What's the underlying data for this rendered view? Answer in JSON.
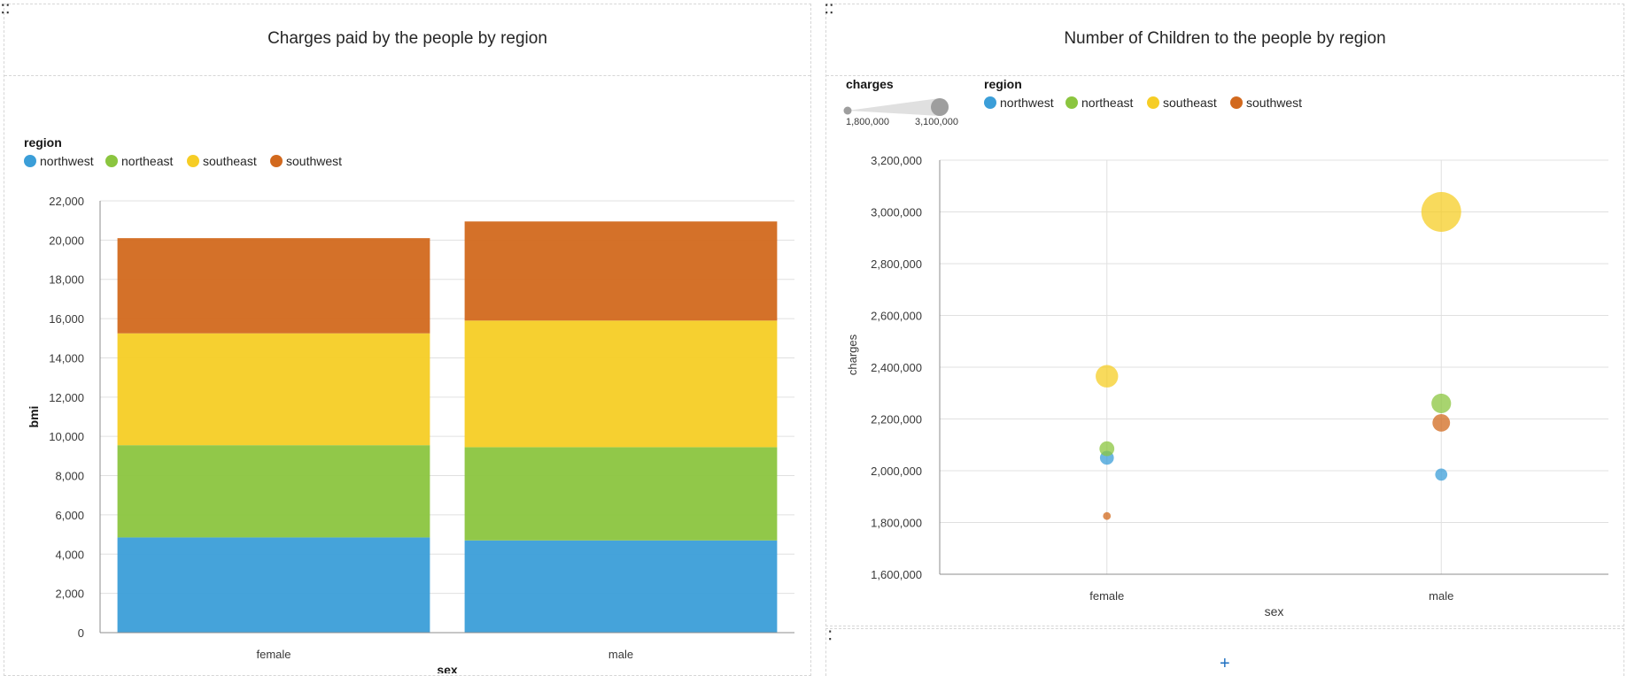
{
  "left_panel": {
    "title": "Charges paid by the people by region",
    "legend_title": "region"
  },
  "right_panel": {
    "title": "Number of Children to the people by region",
    "size_legend": {
      "title": "charges",
      "min_label": "1,800,000",
      "max_label": "3,100,000"
    },
    "legend_title": "region"
  },
  "regions": [
    {
      "name": "northwest",
      "color": "#3b9ed8"
    },
    {
      "name": "northeast",
      "color": "#8bc53f"
    },
    {
      "name": "southeast",
      "color": "#f6cd25"
    },
    {
      "name": "southwest",
      "color": "#d2691e"
    }
  ],
  "add_widget": {
    "label": "+"
  },
  "chart_data": [
    {
      "type": "bar",
      "stacked": true,
      "title": "Charges paid by the people by region",
      "xlabel": "sex",
      "ylabel": "bmi",
      "categories": [
        "female",
        "male"
      ],
      "ylim": [
        0,
        22000
      ],
      "yticks": [
        0,
        2000,
        4000,
        6000,
        8000,
        10000,
        12000,
        14000,
        16000,
        18000,
        20000,
        22000
      ],
      "ytick_labels": [
        "0",
        "2,000",
        "4,000",
        "6,000",
        "8,000",
        "10,000",
        "12,000",
        "14,000",
        "16,000",
        "18,000",
        "20,000",
        "22,000"
      ],
      "series": [
        {
          "name": "northwest",
          "values": [
            4850,
            4700
          ]
        },
        {
          "name": "northeast",
          "values": [
            4700,
            4750
          ]
        },
        {
          "name": "southeast",
          "values": [
            5700,
            6450
          ]
        },
        {
          "name": "southwest",
          "values": [
            4850,
            5050
          ]
        }
      ],
      "grid": true,
      "legend": "top-left"
    },
    {
      "type": "scatter",
      "subtype": "bubble",
      "title": "Number of Children to the people by region",
      "xlabel": "sex",
      "ylabel": "charges",
      "categories": [
        "female",
        "male"
      ],
      "ylim": [
        1600000,
        3200000
      ],
      "yticks": [
        1600000,
        1800000,
        2000000,
        2200000,
        2400000,
        2600000,
        2800000,
        3000000,
        3200000
      ],
      "ytick_labels": [
        "1,600,000",
        "1,800,000",
        "2,000,000",
        "2,200,000",
        "2,400,000",
        "2,600,000",
        "2,800,000",
        "3,000,000",
        "3,200,000"
      ],
      "size_range": [
        1800000,
        3100000
      ],
      "series": [
        {
          "name": "northwest",
          "points": [
            {
              "x": "female",
              "y": 2050000
            },
            {
              "x": "male",
              "y": 1985000
            }
          ]
        },
        {
          "name": "northeast",
          "points": [
            {
              "x": "female",
              "y": 2085000
            },
            {
              "x": "male",
              "y": 2260000
            }
          ]
        },
        {
          "name": "southeast",
          "points": [
            {
              "x": "female",
              "y": 2365000
            },
            {
              "x": "male",
              "y": 3000000
            }
          ]
        },
        {
          "name": "southwest",
          "points": [
            {
              "x": "female",
              "y": 1825000
            },
            {
              "x": "male",
              "y": 2185000
            }
          ]
        }
      ],
      "grid": true,
      "legend": "top-left"
    }
  ]
}
